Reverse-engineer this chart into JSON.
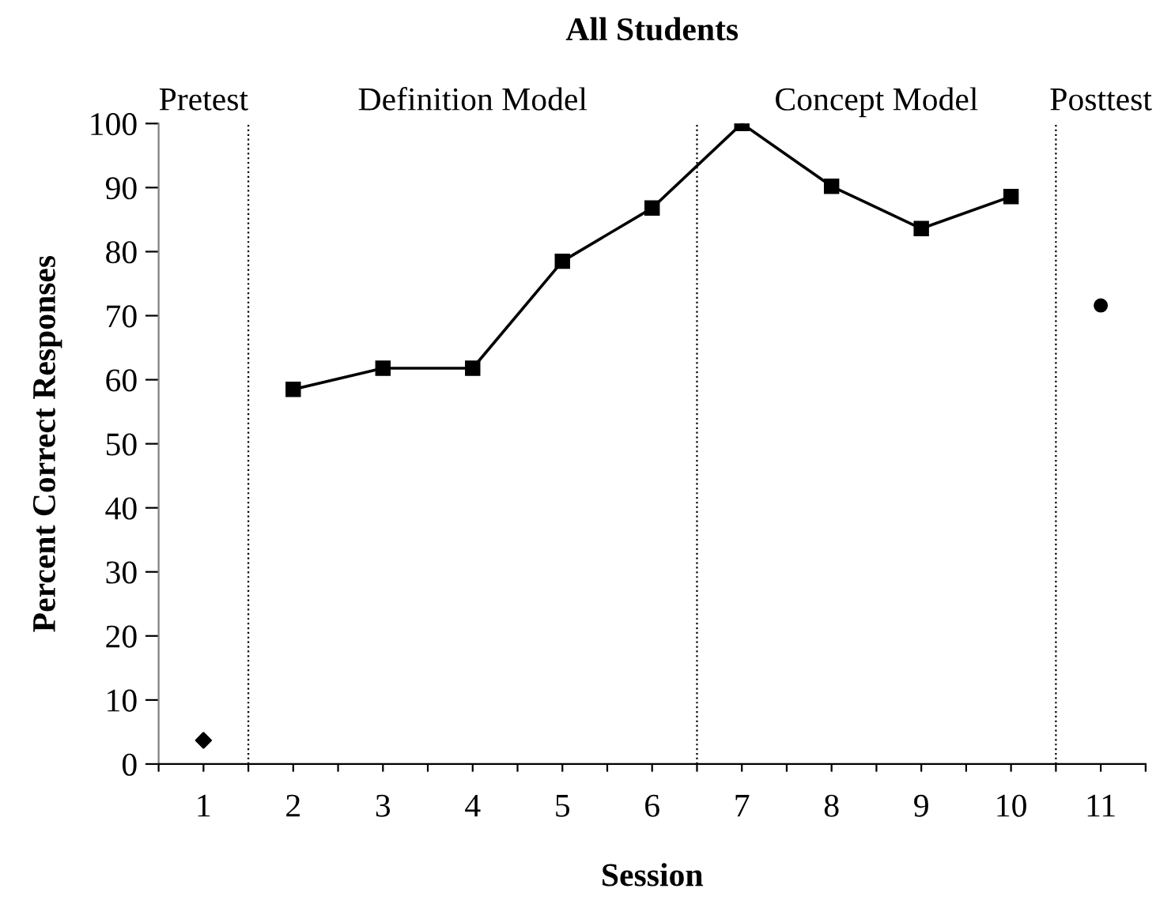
{
  "chart_data": {
    "type": "line",
    "title": "All Students",
    "xlabel": "Session",
    "ylabel": "Percent Correct Responses",
    "xlim": [
      0.5,
      11.5
    ],
    "xticks": [
      {
        "value": 0.5,
        "label": null
      },
      {
        "value": 1,
        "label": "1"
      },
      {
        "value": 1.5,
        "label": null
      },
      {
        "value": 2,
        "label": "2"
      },
      {
        "value": 2.5,
        "label": null
      },
      {
        "value": 3,
        "label": "3"
      },
      {
        "value": 3.5,
        "label": null
      },
      {
        "value": 4,
        "label": "4"
      },
      {
        "value": 4.5,
        "label": null
      },
      {
        "value": 5,
        "label": "5"
      },
      {
        "value": 5.5,
        "label": null
      },
      {
        "value": 6,
        "label": "6"
      },
      {
        "value": 6.5,
        "label": null
      },
      {
        "value": 7,
        "label": "7"
      },
      {
        "value": 7.5,
        "label": null
      },
      {
        "value": 8,
        "label": "8"
      },
      {
        "value": 8.5,
        "label": null
      },
      {
        "value": 9,
        "label": "9"
      },
      {
        "value": 9.5,
        "label": null
      },
      {
        "value": 10,
        "label": "10"
      },
      {
        "value": 10.5,
        "label": null
      },
      {
        "value": 11,
        "label": "11"
      },
      {
        "value": 11.5,
        "label": null
      }
    ],
    "ylim": [
      0,
      100
    ],
    "yticks": [
      0,
      10,
      20,
      30,
      40,
      50,
      60,
      70,
      80,
      90,
      100
    ],
    "grid": false,
    "legend": false,
    "series": [
      {
        "type": "scatter",
        "marker": "diamond",
        "color": "#000000",
        "x": [
          1
        ],
        "values": [
          3.7
        ]
      },
      {
        "marker": "square",
        "line_style": "solid",
        "color": "#000000",
        "x": [
          2,
          3,
          4,
          5,
          6,
          7,
          8,
          9,
          10
        ],
        "values": [
          58.5,
          61.8,
          61.8,
          78.5,
          86.8,
          100,
          90.2,
          83.6,
          88.6
        ]
      },
      {
        "type": "scatter",
        "marker": "circle",
        "color": "#000000",
        "x": [
          11
        ],
        "values": [
          71.6
        ]
      }
    ],
    "ref_lines": [
      {
        "axis": "x",
        "value": 1.5,
        "line_style": "dotted",
        "color": "#000000"
      },
      {
        "axis": "x",
        "value": 6.5,
        "line_style": "dotted",
        "color": "#000000"
      },
      {
        "axis": "x",
        "value": 10.5,
        "line_style": "dotted",
        "color": "#000000"
      }
    ],
    "annotations": [
      "Pretest",
      "Definition Model",
      "Concept Model",
      "Posttest"
    ]
  }
}
